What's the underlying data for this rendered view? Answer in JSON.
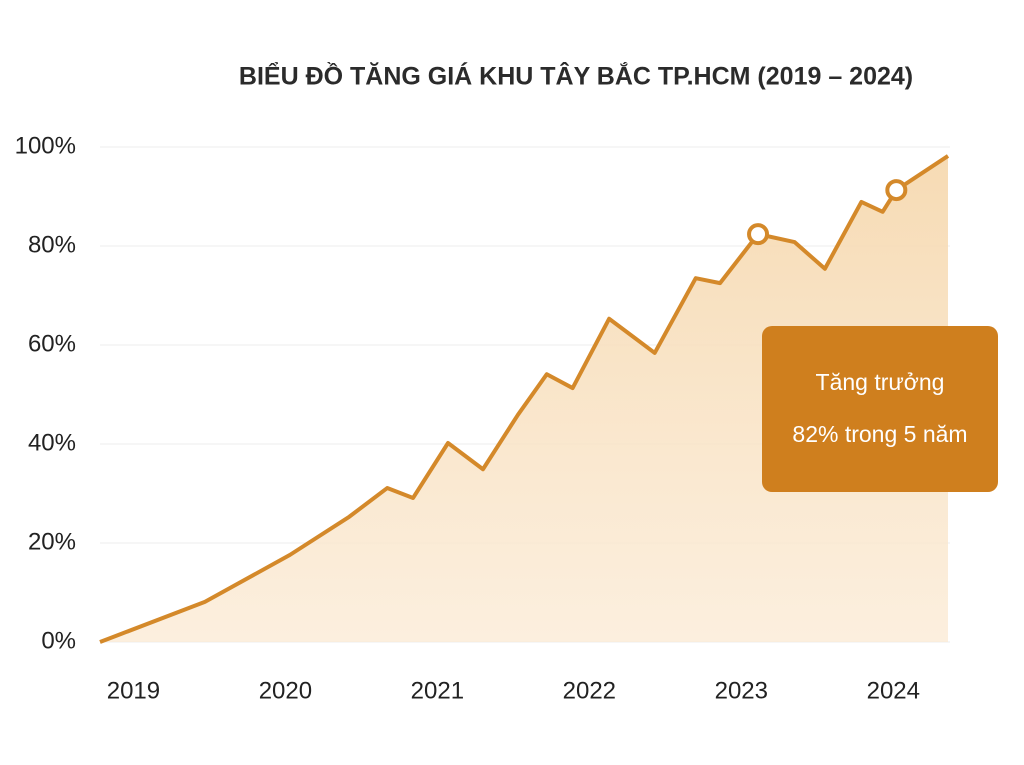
{
  "chart_data": {
    "type": "area",
    "title": "BIỂU ĐỒ TĂNG GIÁ KHU TÂY BẮC TP.HCM (2019 – 2024)",
    "x": [
      2018.78,
      2019.47,
      2020.03,
      2020.42,
      2020.67,
      2020.84,
      2021.07,
      2021.3,
      2021.53,
      2021.72,
      2021.89,
      2022.13,
      2022.43,
      2022.7,
      2022.86,
      2023.11,
      2023.35,
      2023.55,
      2023.79,
      2023.93,
      2024.02,
      2024.36
    ],
    "values": [
      0,
      8.1,
      17.6,
      25.3,
      31.1,
      29.1,
      40.2,
      34.9,
      45.9,
      54.1,
      51.3,
      65.3,
      58.4,
      73.5,
      72.5,
      82.4,
      80.8,
      75.4,
      88.9,
      86.9,
      91.3,
      98.2
    ],
    "color": "#d4892a",
    "highlight_points": [
      15,
      20
    ],
    "xlim": [
      2018.78,
      2024.36
    ],
    "xticks": [
      2019,
      2020,
      2021,
      2022,
      2023,
      2024
    ],
    "ylim": [
      0,
      100
    ],
    "yticks": [
      {
        "value": 0,
        "label": "0%"
      },
      {
        "value": 20,
        "label": "20%"
      },
      {
        "value": 40,
        "label": "40%"
      },
      {
        "value": 60,
        "label": "60%"
      },
      {
        "value": 80,
        "label": "80%"
      },
      {
        "value": 100,
        "label": "100%"
      }
    ],
    "grid": true,
    "annotation": [
      "Tăng trưởng",
      "82% trong 5 năm"
    ],
    "annotation_color": "#cf7f1e"
  }
}
